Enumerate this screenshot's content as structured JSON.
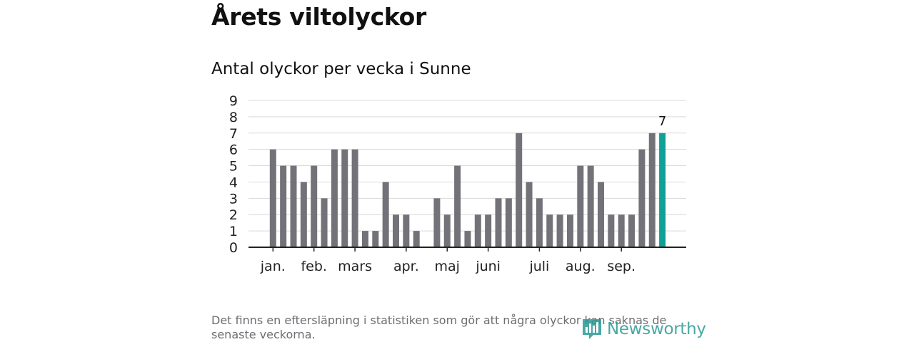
{
  "title": "Årets viltolyckor",
  "subtitle": "Antal olyckor per vecka i Sunne",
  "footnote": "Det finns en eftersläpning i statistiken som gör att några olyckor kan saknas de senaste veckorna.",
  "logo": {
    "text": "Newsworthy",
    "icon": "newsworthy-chart-icon"
  },
  "colors": {
    "bar": "#737278",
    "highlight": "#10a096",
    "grid": "#d9d9d9",
    "axis": "#222222",
    "logo": "#2a9a93"
  },
  "chart_data": {
    "type": "bar",
    "title": "Antal olyckor per vecka i Sunne",
    "xlabel": "",
    "ylabel": "",
    "ylim": [
      0,
      9
    ],
    "yticks": [
      "0",
      "1",
      "2",
      "3",
      "4",
      "5",
      "6",
      "7",
      "8",
      "9"
    ],
    "grid": true,
    "values": [
      6,
      5,
      5,
      4,
      5,
      3,
      6,
      6,
      6,
      1,
      1,
      4,
      2,
      2,
      1,
      0,
      3,
      2,
      5,
      1,
      2,
      2,
      3,
      3,
      7,
      4,
      3,
      2,
      2,
      2,
      5,
      5,
      4,
      2,
      2,
      2,
      6,
      7,
      7
    ],
    "highlight_index": 38,
    "highlight_label": "7",
    "month_labels": [
      {
        "label": "jan.",
        "week_index": 0
      },
      {
        "label": "feb.",
        "week_index": 4
      },
      {
        "label": "mars",
        "week_index": 8
      },
      {
        "label": "apr.",
        "week_index": 13
      },
      {
        "label": "maj",
        "week_index": 17
      },
      {
        "label": "juni",
        "week_index": 21
      },
      {
        "label": "juli",
        "week_index": 26
      },
      {
        "label": "aug.",
        "week_index": 30
      },
      {
        "label": "sep.",
        "week_index": 34
      }
    ]
  }
}
